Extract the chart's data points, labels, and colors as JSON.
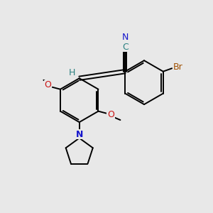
{
  "background_color": "#e8e8e8",
  "figsize": [
    3.0,
    3.0
  ],
  "dpi": 100,
  "bond_color": "#000000",
  "bond_lw": 1.4,
  "colors": {
    "N": "#1414cc",
    "O": "#cc1414",
    "Br": "#a05000",
    "H": "#2a8080",
    "C_nitrile": "#2a8080"
  },
  "atom_bg": "#e8e8e8"
}
